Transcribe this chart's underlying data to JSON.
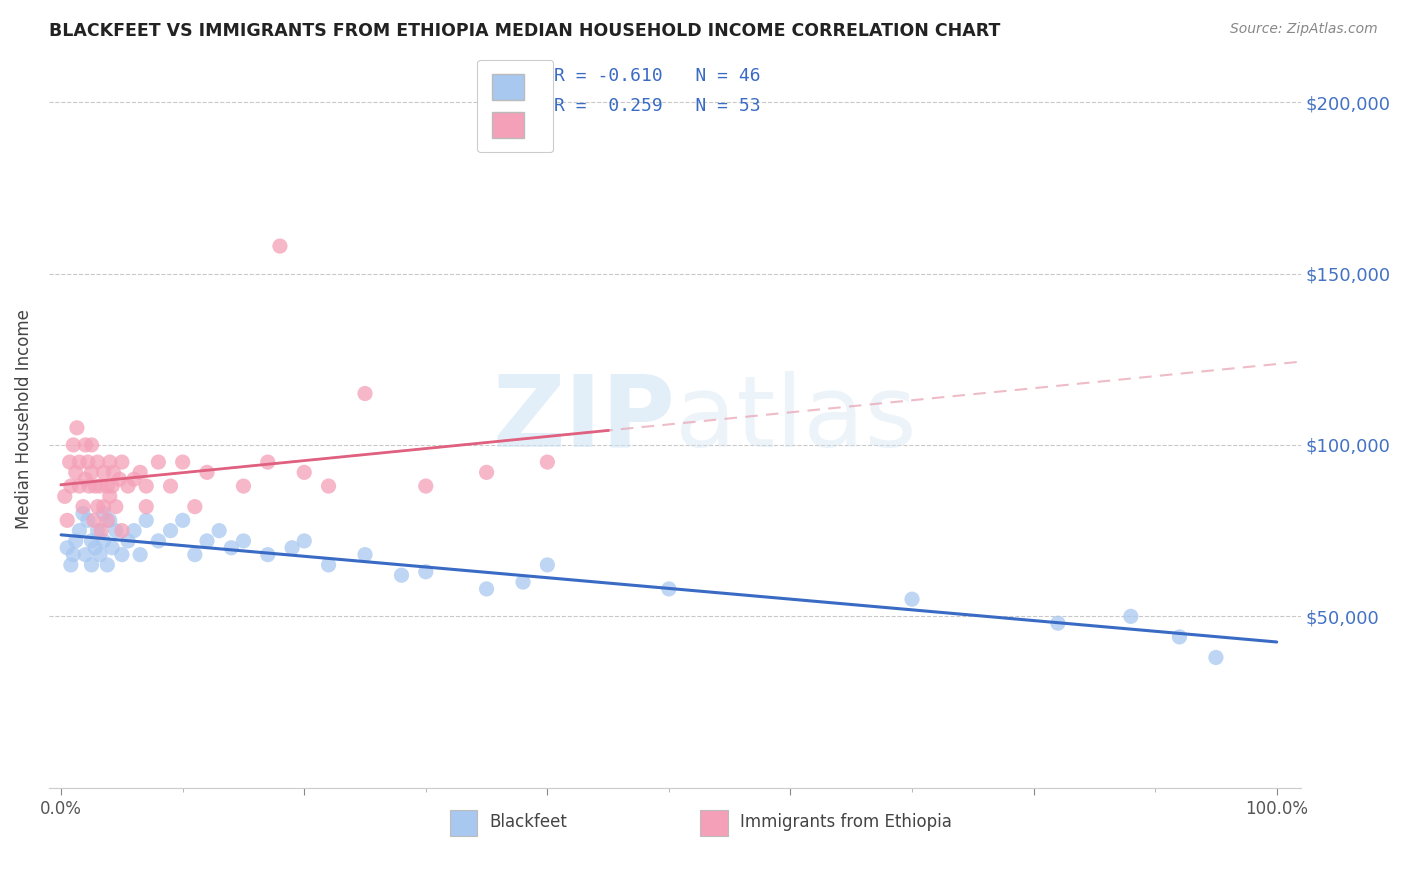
{
  "title": "BLACKFEET VS IMMIGRANTS FROM ETHIOPIA MEDIAN HOUSEHOLD INCOME CORRELATION CHART",
  "source": "Source: ZipAtlas.com",
  "ylabel": "Median Household Income",
  "ylim": [
    0,
    215000
  ],
  "xlim": [
    -0.01,
    1.02
  ],
  "color_blue": "#A8C8F0",
  "color_pink": "#F4A0B8",
  "color_blue_line": "#3A6BC4",
  "color_pink_line": "#E06080",
  "color_pink_dash": "#E8A0B0",
  "watermark_color": "#D0E4F4",
  "background_color": "#FFFFFF",
  "blue_scatter_x": [
    0.005,
    0.008,
    0.01,
    0.012,
    0.015,
    0.018,
    0.02,
    0.022,
    0.025,
    0.025,
    0.028,
    0.03,
    0.032,
    0.035,
    0.035,
    0.038,
    0.04,
    0.042,
    0.045,
    0.05,
    0.055,
    0.06,
    0.065,
    0.07,
    0.08,
    0.09,
    0.1,
    0.11,
    0.12,
    0.13,
    0.14,
    0.15,
    0.17,
    0.19,
    0.2,
    0.22,
    0.25,
    0.28,
    0.3,
    0.35,
    0.38,
    0.4,
    0.5,
    0.7,
    0.82,
    0.88,
    0.92,
    0.95
  ],
  "blue_scatter_y": [
    70000,
    65000,
    68000,
    72000,
    75000,
    80000,
    68000,
    78000,
    72000,
    65000,
    70000,
    75000,
    68000,
    80000,
    72000,
    65000,
    78000,
    70000,
    75000,
    68000,
    72000,
    75000,
    68000,
    78000,
    72000,
    75000,
    78000,
    68000,
    72000,
    75000,
    70000,
    72000,
    68000,
    70000,
    72000,
    65000,
    68000,
    62000,
    63000,
    58000,
    60000,
    65000,
    58000,
    55000,
    48000,
    50000,
    44000,
    38000
  ],
  "pink_scatter_x": [
    0.003,
    0.005,
    0.007,
    0.008,
    0.01,
    0.012,
    0.013,
    0.015,
    0.015,
    0.018,
    0.02,
    0.02,
    0.022,
    0.023,
    0.025,
    0.025,
    0.027,
    0.028,
    0.03,
    0.03,
    0.032,
    0.033,
    0.035,
    0.035,
    0.038,
    0.038,
    0.04,
    0.04,
    0.042,
    0.043,
    0.045,
    0.048,
    0.05,
    0.05,
    0.055,
    0.06,
    0.065,
    0.07,
    0.07,
    0.08,
    0.09,
    0.1,
    0.11,
    0.12,
    0.15,
    0.17,
    0.18,
    0.2,
    0.22,
    0.25,
    0.3,
    0.35,
    0.4
  ],
  "pink_scatter_y": [
    85000,
    78000,
    95000,
    88000,
    100000,
    92000,
    105000,
    88000,
    95000,
    82000,
    100000,
    90000,
    95000,
    88000,
    92000,
    100000,
    78000,
    88000,
    82000,
    95000,
    88000,
    75000,
    92000,
    82000,
    88000,
    78000,
    95000,
    85000,
    88000,
    92000,
    82000,
    90000,
    95000,
    75000,
    88000,
    90000,
    92000,
    82000,
    88000,
    95000,
    88000,
    95000,
    82000,
    92000,
    88000,
    95000,
    158000,
    92000,
    88000,
    115000,
    88000,
    92000,
    95000
  ]
}
